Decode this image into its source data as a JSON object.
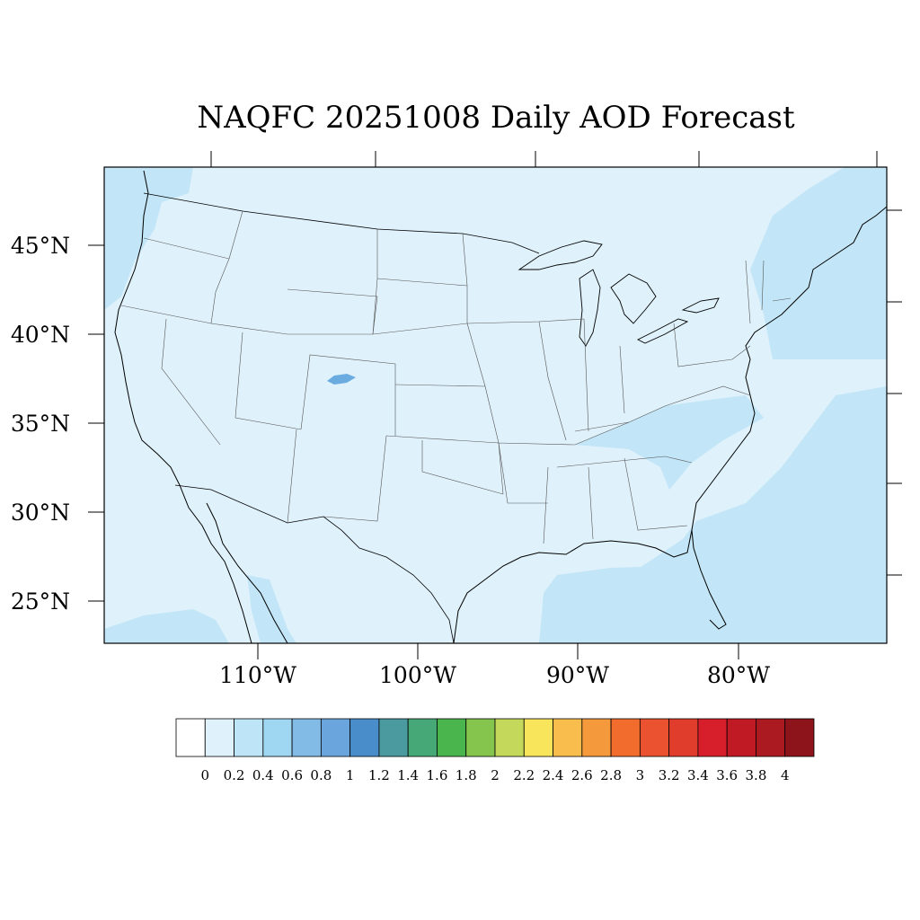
{
  "title": "NAQFC 20251008 Daily AOD Forecast",
  "map": {
    "land_fill": "#dff1fb",
    "ocean_fill": "#dff1fb",
    "shade_fill": "#c2e6f7",
    "plume_fill": "#a2d8f2",
    "hotspot_fill": "#6aace0",
    "border_color": "#000000"
  },
  "lat_labels": [
    "45°N",
    "40°N",
    "35°N",
    "30°N",
    "25°N"
  ],
  "lon_labels": [
    "110°W",
    "100°W",
    "90°W",
    "80°W"
  ],
  "colorbar": {
    "colors": [
      "#ffffff",
      "#dff1fb",
      "#bde5f7",
      "#9fd6f2",
      "#81bbe6",
      "#6aa6dd",
      "#4a8dcb",
      "#4a9aa0",
      "#46a876",
      "#4ab54c",
      "#85c54d",
      "#c4d85b",
      "#f8e55c",
      "#f8bd4d",
      "#f59a3c",
      "#f26d2d",
      "#ea5230",
      "#e03d2d",
      "#d61f2a",
      "#c01a24",
      "#ab1a20",
      "#8e141b"
    ],
    "labels": [
      "0",
      "0.2",
      "0.4",
      "0.6",
      "0.8",
      "1",
      "1.2",
      "1.4",
      "1.6",
      "1.8",
      "2",
      "2.2",
      "2.4",
      "2.6",
      "2.8",
      "3",
      "3.2",
      "3.4",
      "3.6",
      "3.8",
      "4"
    ]
  }
}
